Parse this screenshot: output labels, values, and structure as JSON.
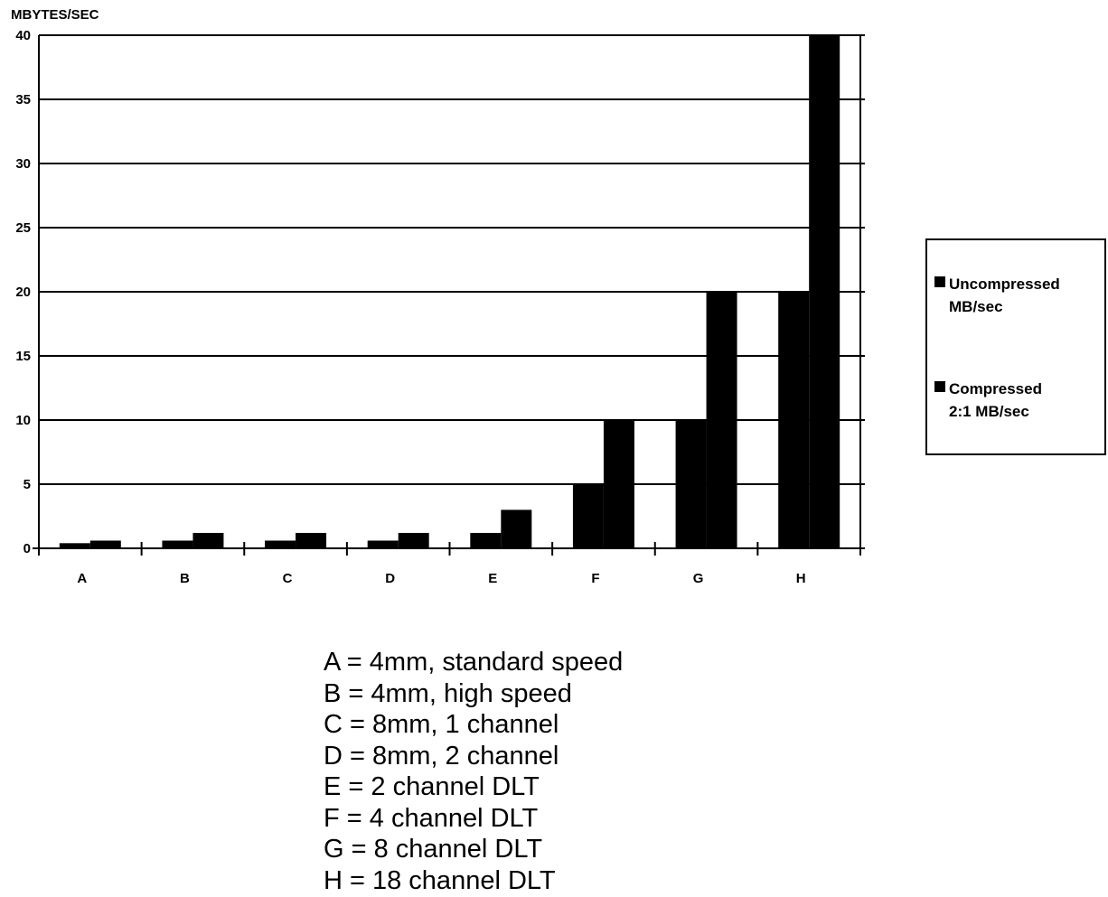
{
  "chart_data": {
    "type": "bar",
    "ylabel": "MBYTES/SEC",
    "xlabel": "",
    "ylim": [
      0,
      40
    ],
    "yticks": [
      0,
      5,
      10,
      15,
      20,
      25,
      30,
      35,
      40
    ],
    "grid": true,
    "legend_position": "right",
    "categories": [
      "A",
      "B",
      "C",
      "D",
      "E",
      "F",
      "G",
      "H"
    ],
    "series": [
      {
        "name": "Uncompressed MB/sec",
        "color": "#000000",
        "values": [
          0.4,
          0.6,
          0.6,
          0.6,
          1.2,
          5,
          10,
          20
        ]
      },
      {
        "name": "Compressed 2:1 MB/sec",
        "color": "#000000",
        "values": [
          0.6,
          1.2,
          1.2,
          1.2,
          3.0,
          10,
          20,
          40
        ]
      }
    ]
  },
  "legend": {
    "items": [
      {
        "label": "Uncompressed\nMB/sec"
      },
      {
        "label": "Compressed\n2:1 MB/sec"
      }
    ]
  },
  "key": [
    "A = 4mm, standard speed",
    "B = 4mm, high speed",
    "C = 8mm, 1 channel",
    "D = 8mm, 2 channel",
    "E = 2 channel DLT",
    "F = 4 channel DLT",
    "G = 8 channel DLT",
    "H = 18 channel DLT"
  ]
}
